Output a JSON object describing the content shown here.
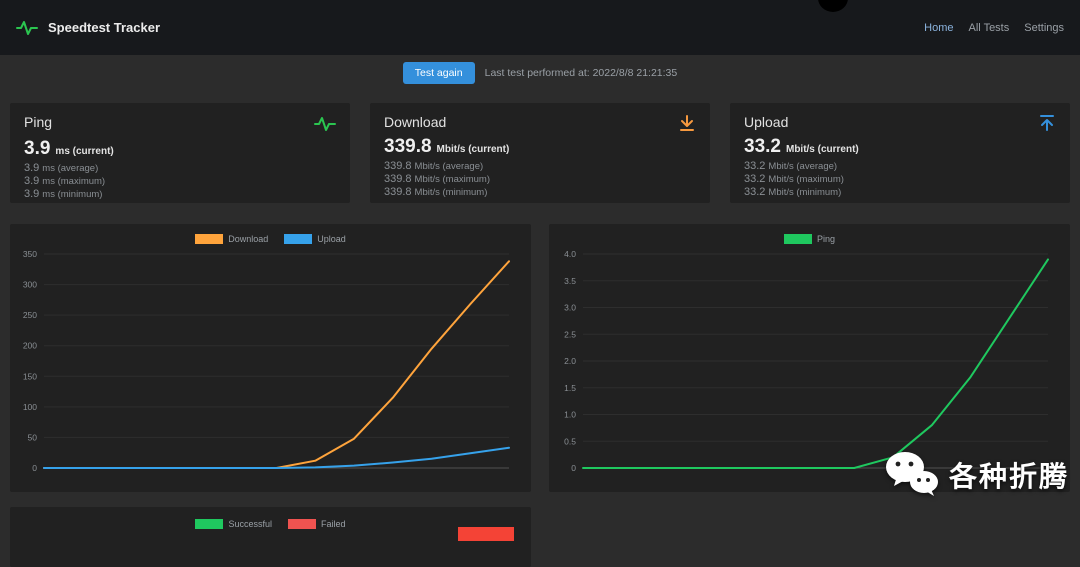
{
  "navbar": {
    "title": "Speedtest Tracker",
    "logo_icon": "pulse-icon",
    "links": [
      {
        "label": "Home",
        "active": true
      },
      {
        "label": "All Tests",
        "active": false
      },
      {
        "label": "Settings",
        "active": false
      }
    ]
  },
  "toolbar": {
    "test_again_label": "Test again",
    "last_test_text": "Last test performed at: 2022/8/8 21:21:35"
  },
  "cards": [
    {
      "title": "Ping",
      "icon": "pulse-icon",
      "icon_color": "#2bc550",
      "current_value": "3.9",
      "current_unit": "ms (current)",
      "stats": [
        {
          "value": "3.9",
          "label": "ms (average)"
        },
        {
          "value": "3.9",
          "label": "ms (maximum)"
        },
        {
          "value": "3.9",
          "label": "ms (minimum)"
        }
      ]
    },
    {
      "title": "Download",
      "icon": "download-arrow-icon",
      "icon_color": "#f6993f",
      "current_value": "339.8",
      "current_unit": "Mbit/s (current)",
      "stats": [
        {
          "value": "339.8",
          "label": "Mbit/s (average)"
        },
        {
          "value": "339.8",
          "label": "Mbit/s (maximum)"
        },
        {
          "value": "339.8",
          "label": "Mbit/s (minimum)"
        }
      ]
    },
    {
      "title": "Upload",
      "icon": "upload-arrow-icon",
      "icon_color": "#3490dc",
      "current_value": "33.2",
      "current_unit": "Mbit/s (current)",
      "stats": [
        {
          "value": "33.2",
          "label": "Mbit/s (average)"
        },
        {
          "value": "33.2",
          "label": "Mbit/s (maximum)"
        },
        {
          "value": "33.2",
          "label": "Mbit/s (minimum)"
        }
      ]
    }
  ],
  "chart_data": [
    {
      "type": "line",
      "title": "",
      "legend_position": "top",
      "ylim": [
        0,
        350
      ],
      "ytick_labels": [
        "0",
        "50",
        "100",
        "150",
        "200",
        "250",
        "300",
        "350"
      ],
      "series": [
        {
          "name": "Download",
          "color": "#ffa43c",
          "values": [
            0,
            0,
            0,
            0,
            0,
            0,
            0,
            12,
            48,
            115,
            195,
            268,
            338
          ]
        },
        {
          "name": "Upload",
          "color": "#36a2eb",
          "values": [
            0,
            0,
            0,
            0,
            0,
            0,
            0,
            1,
            4,
            9,
            15,
            24,
            33
          ]
        }
      ]
    },
    {
      "type": "line",
      "title": "",
      "legend_position": "top",
      "ylim": [
        0,
        4
      ],
      "ytick_labels": [
        "0",
        "0.5",
        "1.0",
        "1.5",
        "2.0",
        "2.5",
        "3.0",
        "3.5",
        "4.0"
      ],
      "series": [
        {
          "name": "Ping",
          "color": "#1fc85f",
          "values": [
            0,
            0,
            0,
            0,
            0,
            0,
            0,
            0,
            0.2,
            0.8,
            1.7,
            2.8,
            3.9
          ]
        }
      ]
    },
    {
      "type": "line",
      "title": "",
      "legend_position": "top",
      "ylim": [
        0,
        1
      ],
      "ytick_labels": [],
      "series": [
        {
          "name": "Successful",
          "color": "#1fc85f",
          "values": []
        },
        {
          "name": "Failed",
          "color": "#ef5350",
          "values": []
        }
      ]
    }
  ],
  "watermark": {
    "text": "各种折腾",
    "icon": "wechat-icon"
  },
  "colors": {
    "accent_blue": "#3490dc",
    "download_orange": "#ffa43c",
    "upload_blue": "#36a2eb",
    "ping_green": "#1fc85f",
    "failed_red": "#ef5350",
    "navbar_bg": "#17191c",
    "card_bg": "#212121",
    "page_bg": "#2c2c2c"
  }
}
